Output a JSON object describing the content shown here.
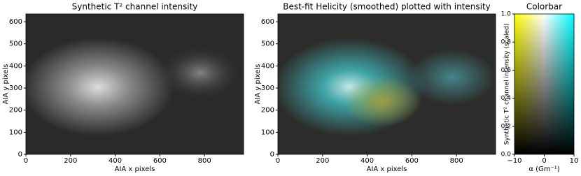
{
  "chart_data": [
    {
      "type": "image",
      "title": "Synthetic T² channel intensity",
      "x_label": "AIA x pixels",
      "y_label": "AIA y pixels",
      "xlim": [
        0,
        975
      ],
      "ylim": [
        0,
        635
      ],
      "xticks": [
        0,
        200,
        400,
        600,
        800
      ],
      "yticks": [
        0,
        100,
        200,
        300,
        400,
        500,
        600
      ]
    },
    {
      "type": "image",
      "title": "Best-fit Helicity (smoothed) plotted with intensity",
      "x_label": "AIA x pixels",
      "y_label": "AIA y pixels",
      "xlim": [
        0,
        975
      ],
      "ylim": [
        0,
        635
      ],
      "xticks": [
        0,
        200,
        400,
        600,
        800
      ],
      "yticks": [
        0,
        100,
        200,
        300,
        400,
        500,
        600
      ]
    },
    {
      "type": "colorbar",
      "title": "Colorbar",
      "x_label": "α (Gm⁻¹)",
      "y_label": "Synthetic T² channel intensity (scaled)",
      "xlim": [
        -10,
        10
      ],
      "ylim": [
        0,
        1
      ],
      "xticks": [
        {
          "value": -10,
          "label": "−10"
        },
        0,
        10
      ],
      "yticks": [
        {
          "value": 0,
          "label": "0.0"
        },
        {
          "value": 0.2,
          "label": "0.2"
        },
        {
          "value": 0.4,
          "label": "0.4"
        },
        {
          "value": 0.6,
          "label": "0.6"
        },
        {
          "value": 0.8,
          "label": "0.8"
        },
        {
          "value": 1,
          "label": "1.0"
        }
      ]
    }
  ]
}
